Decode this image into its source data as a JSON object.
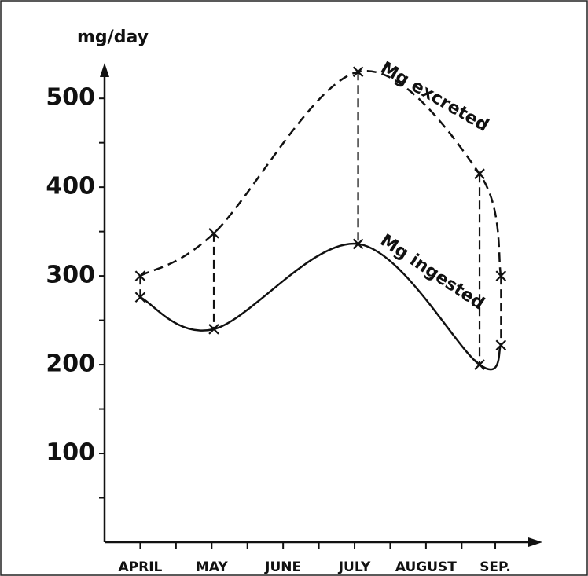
{
  "chart_data": {
    "type": "line",
    "y_label": "mg/day",
    "xlim": [
      -0.5,
      5.63
    ],
    "xticks": [
      {
        "value": 0,
        "label": "APRIL"
      },
      {
        "value": 1,
        "label": "MAY"
      },
      {
        "value": 2,
        "label": "JUNE"
      },
      {
        "value": 3,
        "label": "JULY"
      },
      {
        "value": 4,
        "label": "AUGUST"
      },
      {
        "value": 4.97,
        "label": "SEP."
      }
    ],
    "xminor_ticks": [
      0.5,
      1.5,
      2.5,
      3.5,
      4.5
    ],
    "ylim": [
      0,
      540
    ],
    "yticks": [
      100,
      200,
      300,
      400,
      500
    ],
    "yminor_ticks": [
      50,
      150,
      250,
      350,
      450
    ],
    "series": [
      {
        "name": "Mg excreted",
        "color": "#111",
        "dashed": true,
        "x": [
          0,
          1.03,
          3.05,
          4.75,
          5.05
        ],
        "values": [
          300,
          348,
          530,
          415,
          300
        ]
      },
      {
        "name": "Mg ingested",
        "color": "#111",
        "dashed": false,
        "x": [
          0,
          1.03,
          3.05,
          4.75,
          5.05
        ],
        "values": [
          276,
          240,
          336,
          200,
          222
        ]
      }
    ]
  }
}
